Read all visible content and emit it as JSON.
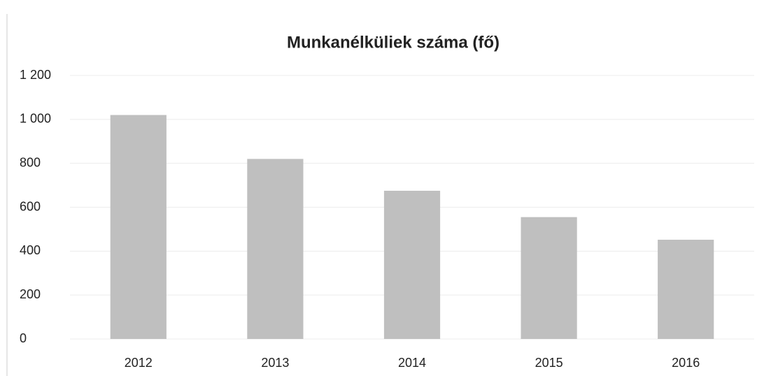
{
  "chart_data": {
    "type": "bar",
    "title": "Munkanélküliek száma (fő)",
    "categories": [
      "2012",
      "2013",
      "2014",
      "2015",
      "2016"
    ],
    "values": [
      1020,
      820,
      675,
      555,
      452
    ],
    "color": "#bfbfbf",
    "ylim": [
      0,
      1200
    ],
    "yticks": [
      0,
      200,
      400,
      600,
      800,
      {
        "value": 1000,
        "label": "1 000"
      },
      {
        "value": 1200,
        "label": "1 200"
      }
    ],
    "grid": true
  }
}
